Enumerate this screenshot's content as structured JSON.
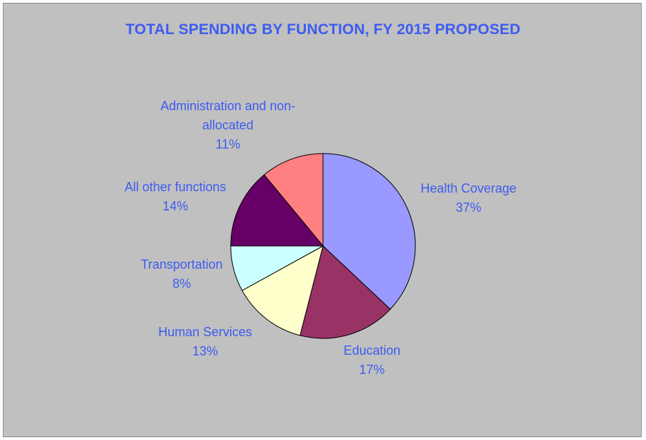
{
  "chart_data": {
    "type": "pie",
    "title": "TOTAL SPENDING BY FUNCTION, FY 2015 PROPOSED",
    "slices": [
      {
        "name": "Health Coverage",
        "pct_label": "37%",
        "value": 37,
        "color": "#9999ff"
      },
      {
        "name": "Education",
        "pct_label": "17%",
        "value": 17,
        "color": "#993366"
      },
      {
        "name": "Human Services",
        "pct_label": "13%",
        "value": 13,
        "color": "#ffffcc"
      },
      {
        "name": "Transportation",
        "pct_label": "8%",
        "value": 8,
        "color": "#ccffff"
      },
      {
        "name": "All other functions",
        "pct_label": "14%",
        "value": 14,
        "color": "#660066"
      },
      {
        "name": "Administration and non-allocated",
        "pct_label": "11%",
        "value": 11,
        "color": "#ff8080"
      }
    ],
    "text_color": "#3d5cf0",
    "background_color": "#c0c0c0"
  }
}
